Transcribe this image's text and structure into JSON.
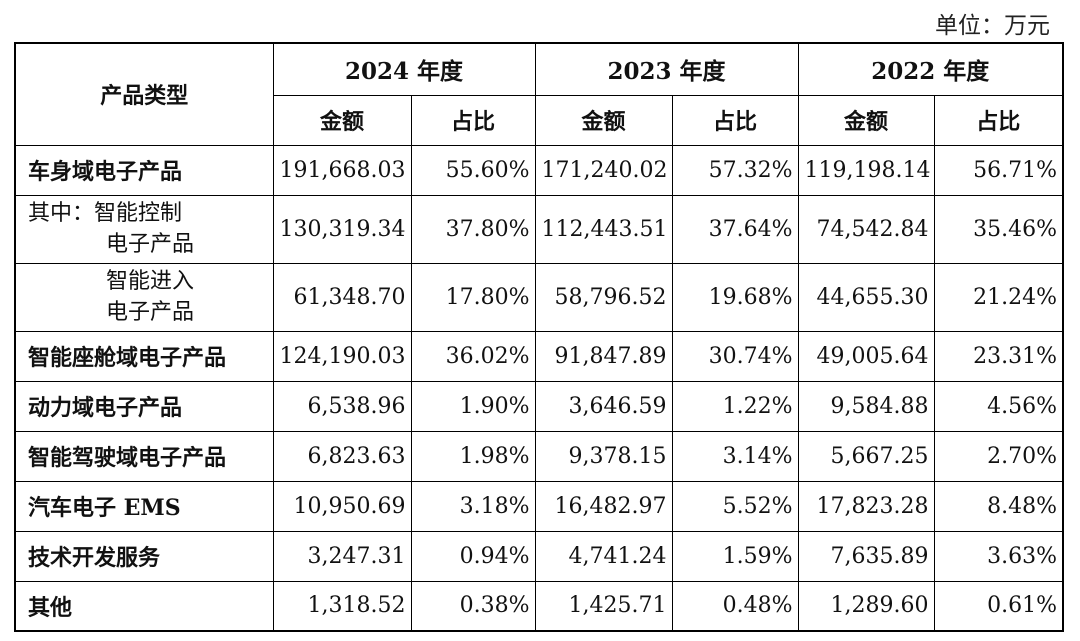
{
  "unit_label": "单位：万元",
  "header": {
    "category": "产品类型",
    "years": [
      "2024 年度",
      "2023 年度",
      "2022 年度"
    ],
    "amount": "金额",
    "ratio": "占比"
  },
  "rows": [
    {
      "name": "车身域电子产品",
      "values": [
        "191,668.03",
        "55.60%",
        "171,240.02",
        "57.32%",
        "119,198.14",
        "56.71%"
      ]
    },
    {
      "name_line1": "其中：智能控制",
      "name_line2": "电子产品",
      "values": [
        "130,319.34",
        "37.80%",
        "112,443.51",
        "37.64%",
        "74,542.84",
        "35.46%"
      ]
    },
    {
      "name_line1": "智能进入",
      "name_line2": "电子产品",
      "values": [
        "61,348.70",
        "17.80%",
        "58,796.52",
        "19.68%",
        "44,655.30",
        "21.24%"
      ]
    },
    {
      "name": "智能座舱域电子产品",
      "values": [
        "124,190.03",
        "36.02%",
        "91,847.89",
        "30.74%",
        "49,005.64",
        "23.31%"
      ]
    },
    {
      "name": "动力域电子产品",
      "values": [
        "6,538.96",
        "1.90%",
        "3,646.59",
        "1.22%",
        "9,584.88",
        "4.56%"
      ]
    },
    {
      "name": "智能驾驶域电子产品",
      "values": [
        "6,823.63",
        "1.98%",
        "9,378.15",
        "3.14%",
        "5,667.25",
        "2.70%"
      ]
    },
    {
      "name": "汽车电子 EMS",
      "values": [
        "10,950.69",
        "3.18%",
        "16,482.97",
        "5.52%",
        "17,823.28",
        "8.48%"
      ]
    },
    {
      "name": "技术开发服务",
      "values": [
        "3,247.31",
        "0.94%",
        "4,741.24",
        "1.59%",
        "7,635.89",
        "3.63%"
      ]
    },
    {
      "name": "其他",
      "values": [
        "1,318.52",
        "0.38%",
        "1,425.71",
        "0.48%",
        "1,289.60",
        "0.61%"
      ]
    }
  ]
}
